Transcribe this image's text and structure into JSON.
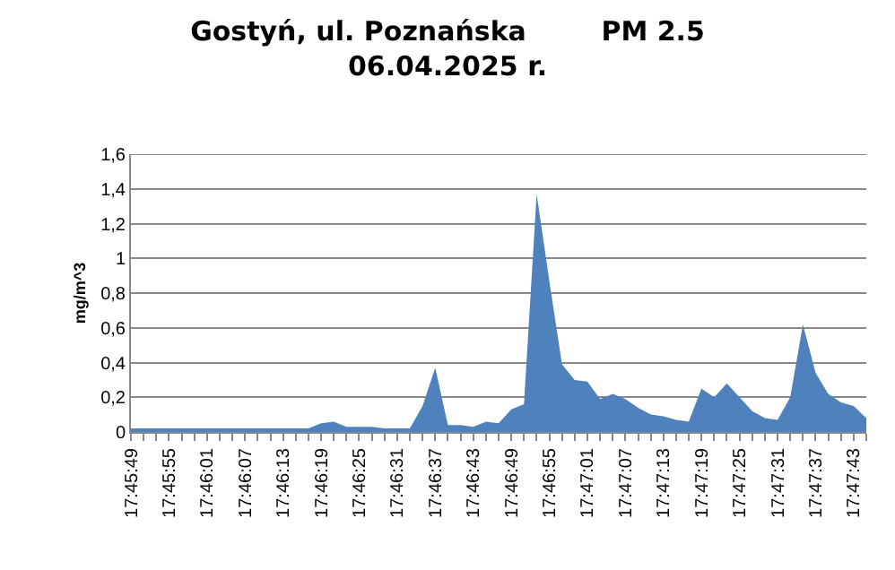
{
  "chart_data": {
    "type": "area",
    "title": "Gostyń, ul. Poznańska        PM 2.5\n06.04.2025 r.",
    "ylabel": "mg/m^3",
    "categories": [
      "17:45:49",
      null,
      null,
      "17:45:55",
      null,
      null,
      "17:46:01",
      null,
      null,
      "17:46:07",
      null,
      null,
      "17:46:13",
      null,
      null,
      "17:46:19",
      null,
      null,
      "17:46:25",
      null,
      null,
      "17:46:31",
      null,
      null,
      "17:46:37",
      null,
      null,
      "17:46:43",
      null,
      null,
      "17:46:49",
      null,
      null,
      "17:46:55",
      null,
      null,
      "17:47:01",
      null,
      null,
      "17:47:07",
      null,
      null,
      "17:47:13",
      null,
      null,
      "17:47:19",
      null,
      null,
      "17:47:25",
      null,
      null,
      "17:47:31",
      null,
      null,
      "17:47:37",
      null,
      null,
      "17:47:43",
      null
    ],
    "series": [
      {
        "color": "#4f81bd",
        "values": [
          0.02,
          0.02,
          0.02,
          0.02,
          0.02,
          0.02,
          0.02,
          0.02,
          0.02,
          0.02,
          0.02,
          0.02,
          0.02,
          0.02,
          0.02,
          0.05,
          0.06,
          0.03,
          0.03,
          0.03,
          0.02,
          0.02,
          0.02,
          0.15,
          0.37,
          0.04,
          0.04,
          0.03,
          0.06,
          0.05,
          0.13,
          0.16,
          1.37,
          0.87,
          0.39,
          0.3,
          0.29,
          0.19,
          0.22,
          0.19,
          0.14,
          0.1,
          0.09,
          0.07,
          0.06,
          0.25,
          0.2,
          0.28,
          0.2,
          0.12,
          0.08,
          0.07,
          0.2,
          0.62,
          0.34,
          0.22,
          0.17,
          0.15,
          0.08
        ]
      }
    ],
    "ylim": [
      0,
      1.6
    ],
    "yticks": [
      0,
      {
        "value": 0.2,
        "label": "0,2"
      },
      {
        "value": 0.4,
        "label": "0,4"
      },
      {
        "value": 0.6,
        "label": "0,6"
      },
      {
        "value": 0.8,
        "label": "0,8"
      },
      1,
      {
        "value": 1.2,
        "label": "1,2"
      },
      {
        "value": 1.4,
        "label": "1,4"
      },
      {
        "value": 1.6,
        "label": "1,6"
      }
    ],
    "grid": "y"
  }
}
